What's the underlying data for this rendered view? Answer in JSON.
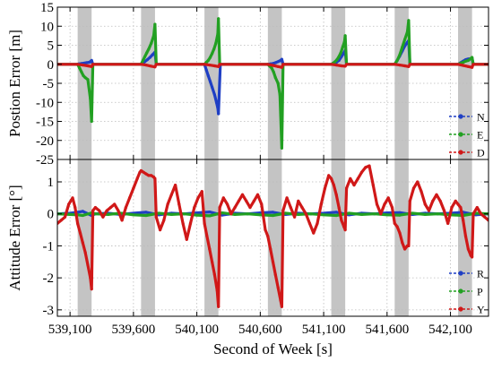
{
  "colors": {
    "north": "#1f3fc4",
    "east": "#22a022",
    "down": "#d01818",
    "gap": "#c4c4c4",
    "grid": "#bbbbbb"
  },
  "chart_data": [
    {
      "type": "line",
      "ylabel": "Postion Error [m]",
      "xlabel": "",
      "xlim": [
        539000,
        542400
      ],
      "ylim": [
        -25,
        15
      ],
      "yticks": [
        15,
        10,
        5,
        0,
        -5,
        -10,
        -15,
        -20,
        -25
      ],
      "ytick_labels": [
        "15",
        "10",
        "5",
        "0",
        "-5",
        "-10",
        "-15",
        "-20",
        "-25"
      ],
      "legend": "bottom-right",
      "gaps": [
        [
          539160,
          539270
        ],
        [
          539660,
          539770
        ],
        [
          540160,
          540270
        ],
        [
          540660,
          540770
        ],
        [
          541160,
          541270
        ],
        [
          541660,
          541770
        ],
        [
          542160,
          542270
        ]
      ],
      "series": [
        {
          "name": "N",
          "color": "#1f3fc4",
          "x": [
            539000,
            539160,
            539170,
            539190,
            539210,
            539230,
            539250,
            539260,
            539270,
            539280,
            539660,
            539670,
            539690,
            539710,
            539730,
            539750,
            539770,
            539780,
            540160,
            540175,
            540190,
            540205,
            540220,
            540240,
            540255,
            540265,
            540270,
            540285,
            540660,
            540680,
            540700,
            540720,
            540740,
            540760,
            540770,
            540780,
            541160,
            541180,
            541200,
            541220,
            541240,
            541260,
            541270,
            541280,
            541660,
            541680,
            541700,
            541720,
            541740,
            541760,
            541770,
            541780,
            542160,
            542180,
            542200,
            542220,
            542240,
            542260,
            542270,
            542280,
            542400
          ],
          "y": [
            0,
            0,
            0.1,
            0.2,
            0.3,
            0.4,
            0.5,
            0.7,
            1.0,
            0,
            0,
            0.2,
            0.7,
            1.2,
            1.8,
            2.5,
            3.2,
            0,
            0,
            -1.5,
            -3.0,
            -4.5,
            -6.0,
            -8.0,
            -10.0,
            -11.5,
            -13.0,
            0,
            0,
            0.1,
            0.2,
            0.4,
            0.7,
            1.0,
            1.3,
            0,
            0,
            0.2,
            0.5,
            1.0,
            2.0,
            3.0,
            3.6,
            0,
            0,
            1.0,
            2.2,
            3.5,
            4.8,
            5.8,
            6.2,
            0,
            0,
            0.4,
            0.8,
            1.2,
            1.4,
            1.5,
            1.6,
            0,
            0
          ]
        },
        {
          "name": "E",
          "color": "#22a022",
          "x": [
            539000,
            539160,
            539175,
            539190,
            539205,
            539220,
            539240,
            539260,
            539270,
            539280,
            539660,
            539675,
            539690,
            539705,
            539720,
            539740,
            539760,
            539770,
            539780,
            540160,
            540175,
            540190,
            540205,
            540220,
            540235,
            540250,
            540265,
            540270,
            540280,
            540660,
            540675,
            540690,
            540705,
            540720,
            540740,
            540755,
            540770,
            540780,
            541160,
            541175,
            541190,
            541205,
            541220,
            541235,
            541250,
            541265,
            541270,
            541280,
            541660,
            541680,
            541700,
            541720,
            541740,
            541760,
            541770,
            541780,
            542160,
            542180,
            542200,
            542220,
            542240,
            542260,
            542270,
            542280,
            542400
          ],
          "y": [
            0,
            0,
            -1.0,
            -2.0,
            -3.0,
            -3.5,
            -4.0,
            -9.0,
            -15.0,
            0,
            0,
            1.0,
            2.0,
            3.0,
            4.0,
            5.5,
            7.5,
            10.5,
            0,
            0,
            0.5,
            1.0,
            1.8,
            2.8,
            4.0,
            5.5,
            8.0,
            12.0,
            0,
            0,
            -0.5,
            -1.0,
            -2.0,
            -3.5,
            -5.0,
            -8.0,
            -22.0,
            0,
            0,
            0.3,
            0.7,
            1.2,
            2.0,
            3.0,
            4.5,
            6.0,
            7.5,
            0,
            0,
            1.0,
            2.5,
            4.5,
            6.5,
            8.5,
            11.5,
            0,
            0,
            0.3,
            0.5,
            0.8,
            1.0,
            1.5,
            1.8,
            0,
            0
          ]
        },
        {
          "name": "D",
          "color": "#d01818",
          "x": [
            539000,
            539160,
            539200,
            539240,
            539270,
            539280,
            539660,
            539700,
            539740,
            539770,
            539780,
            540160,
            540200,
            540240,
            540270,
            540280,
            540660,
            540700,
            540740,
            540770,
            540780,
            541160,
            541200,
            541240,
            541270,
            541280,
            541660,
            541700,
            541740,
            541770,
            541780,
            542160,
            542200,
            542240,
            542270,
            542280,
            542400
          ],
          "y": [
            0,
            0,
            -0.2,
            -0.4,
            -0.6,
            0,
            0,
            -0.2,
            -0.5,
            -0.7,
            0,
            0,
            -0.2,
            -0.4,
            -0.6,
            0,
            0,
            -0.3,
            -0.6,
            -0.8,
            0,
            0,
            -0.2,
            -0.4,
            -0.5,
            0,
            0,
            -0.2,
            -0.4,
            -0.6,
            0,
            0,
            -0.3,
            -0.6,
            -0.8,
            0,
            0
          ]
        }
      ]
    },
    {
      "type": "line",
      "ylabel": "Attitude Error [°]",
      "xlabel": "Second of Week [s]",
      "xlim": [
        539000,
        542400
      ],
      "ylim": [
        -3.2,
        1.7
      ],
      "yticks": [
        1,
        0,
        -1,
        -2,
        -3
      ],
      "ytick_labels": [
        "1",
        "0",
        "-1",
        "-2",
        "-3"
      ],
      "xticks": [
        539100,
        539600,
        540100,
        540600,
        541100,
        541600,
        542100
      ],
      "xtick_labels": [
        "539,100",
        "539,600",
        "540,100",
        "540,600",
        "541,100",
        "541,600",
        "542,100"
      ],
      "legend": "bottom-right",
      "series": [
        {
          "name": "R",
          "color": "#1f3fc4",
          "x": [
            539000,
            539100,
            539160,
            539200,
            539270,
            539300,
            539400,
            539500,
            539600,
            539700,
            539800,
            539900,
            540000,
            540100,
            540200,
            540300,
            540400,
            540500,
            540600,
            540700,
            540800,
            540900,
            541000,
            541100,
            541200,
            541300,
            541400,
            541500,
            541600,
            541700,
            541800,
            541900,
            542000,
            542100,
            542200,
            542300,
            542400
          ],
          "y": [
            0,
            0.02,
            0.05,
            0.08,
            -0.05,
            0,
            0.02,
            -0.02,
            0.02,
            0.05,
            -0.03,
            0.02,
            0,
            0.03,
            0.06,
            -0.04,
            0.02,
            0,
            0.03,
            0.05,
            -0.02,
            0.02,
            0,
            0.02,
            0.05,
            -0.03,
            0.02,
            0,
            0.03,
            0.04,
            -0.02,
            0.02,
            0,
            0.02,
            0.05,
            -0.03,
            0
          ]
        },
        {
          "name": "P",
          "color": "#22a022",
          "x": [
            539000,
            539100,
            539160,
            539200,
            539270,
            539300,
            539400,
            539500,
            539600,
            539700,
            539800,
            539900,
            540000,
            540100,
            540200,
            540300,
            540400,
            540500,
            540600,
            540700,
            540800,
            540900,
            541000,
            541100,
            541200,
            541300,
            541400,
            541500,
            541600,
            541700,
            541800,
            541900,
            542000,
            542100,
            542200,
            542300,
            542400
          ],
          "y": [
            0,
            -0.02,
            -0.03,
            -0.05,
            0.03,
            0,
            -0.02,
            0.02,
            -0.03,
            -0.05,
            0.02,
            -0.02,
            0,
            -0.04,
            -0.06,
            0.03,
            -0.02,
            0,
            -0.03,
            -0.05,
            0.02,
            -0.02,
            0,
            -0.03,
            -0.05,
            0.02,
            -0.02,
            0,
            -0.03,
            -0.04,
            0.02,
            -0.02,
            0,
            -0.03,
            -0.05,
            0.02,
            0
          ]
        },
        {
          "name": "Y",
          "color": "#d01818",
          "x": [
            539000,
            539030,
            539060,
            539090,
            539120,
            539140,
            539160,
            539180,
            539200,
            539220,
            539240,
            539260,
            539270,
            539280,
            539300,
            539330,
            539360,
            539390,
            539420,
            539450,
            539480,
            539510,
            539540,
            539570,
            539600,
            539630,
            539650,
            539660,
            539680,
            539700,
            539720,
            539740,
            539760,
            539770,
            539780,
            539810,
            539840,
            539870,
            539900,
            539930,
            539960,
            539990,
            540020,
            540050,
            540080,
            540110,
            540140,
            540160,
            540180,
            540200,
            540220,
            540240,
            540260,
            540270,
            540280,
            540310,
            540340,
            540370,
            540400,
            540430,
            540460,
            540490,
            540520,
            540550,
            540580,
            540610,
            540640,
            540660,
            540680,
            540700,
            540720,
            540740,
            540760,
            540770,
            540780,
            540810,
            540840,
            540870,
            540900,
            540930,
            540960,
            540990,
            541020,
            541050,
            541080,
            541110,
            541140,
            541160,
            541180,
            541200,
            541220,
            541240,
            541260,
            541270,
            541280,
            541310,
            541340,
            541370,
            541400,
            541430,
            541460,
            541490,
            541520,
            541550,
            541580,
            541610,
            541640,
            541660,
            541680,
            541700,
            541720,
            541740,
            541760,
            541770,
            541780,
            541810,
            541840,
            541870,
            541900,
            541930,
            541960,
            541990,
            542020,
            542050,
            542080,
            542110,
            542140,
            542160,
            542180,
            542200,
            542220,
            542240,
            542260,
            542270,
            542280,
            542310,
            542340,
            542370,
            542400
          ],
          "y": [
            -0.3,
            -0.2,
            -0.1,
            0.3,
            0.5,
            0.2,
            -0.3,
            -0.6,
            -0.9,
            -1.2,
            -1.6,
            -2.0,
            -2.35,
            0.1,
            0.2,
            0.1,
            -0.1,
            0.1,
            0.2,
            0.3,
            0.1,
            -0.2,
            0.2,
            0.5,
            0.8,
            1.1,
            1.3,
            1.35,
            1.3,
            1.25,
            1.2,
            1.2,
            1.15,
            1.1,
            -0.1,
            -0.5,
            -0.2,
            0.3,
            0.6,
            0.9,
            0.3,
            -0.3,
            -0.8,
            -0.3,
            0.2,
            0.5,
            0.7,
            -0.3,
            -0.7,
            -1.1,
            -1.5,
            -1.9,
            -2.4,
            -2.9,
            0.2,
            0.5,
            0.3,
            0,
            0.2,
            0.4,
            0.6,
            0.4,
            0.2,
            0.4,
            0.6,
            0.3,
            -0.5,
            -0.7,
            -1.1,
            -1.5,
            -1.9,
            -2.3,
            -2.7,
            -2.9,
            0.1,
            0.5,
            0.2,
            -0.1,
            0.4,
            0.2,
            0,
            -0.3,
            -0.6,
            -0.3,
            0.3,
            0.8,
            1.2,
            1.1,
            0.9,
            0.6,
            0.2,
            -0.2,
            -0.4,
            -0.5,
            0.8,
            1.1,
            0.9,
            1.1,
            1.3,
            1.45,
            1.5,
            0.9,
            0.3,
            0,
            0.3,
            0.5,
            0.2,
            -0.3,
            -0.4,
            -0.6,
            -0.9,
            -1.1,
            -1.0,
            -1.0,
            0.4,
            0.8,
            1.0,
            0.7,
            0.3,
            0.1,
            0.4,
            0.6,
            0.4,
            0.1,
            -0.3,
            0.2,
            0.4,
            0.3,
            0.2,
            -0.2,
            -0.7,
            -1.1,
            -1.3,
            -1.35,
            0,
            0.2,
            0,
            -0.1,
            -0.2
          ]
        }
      ]
    }
  ]
}
